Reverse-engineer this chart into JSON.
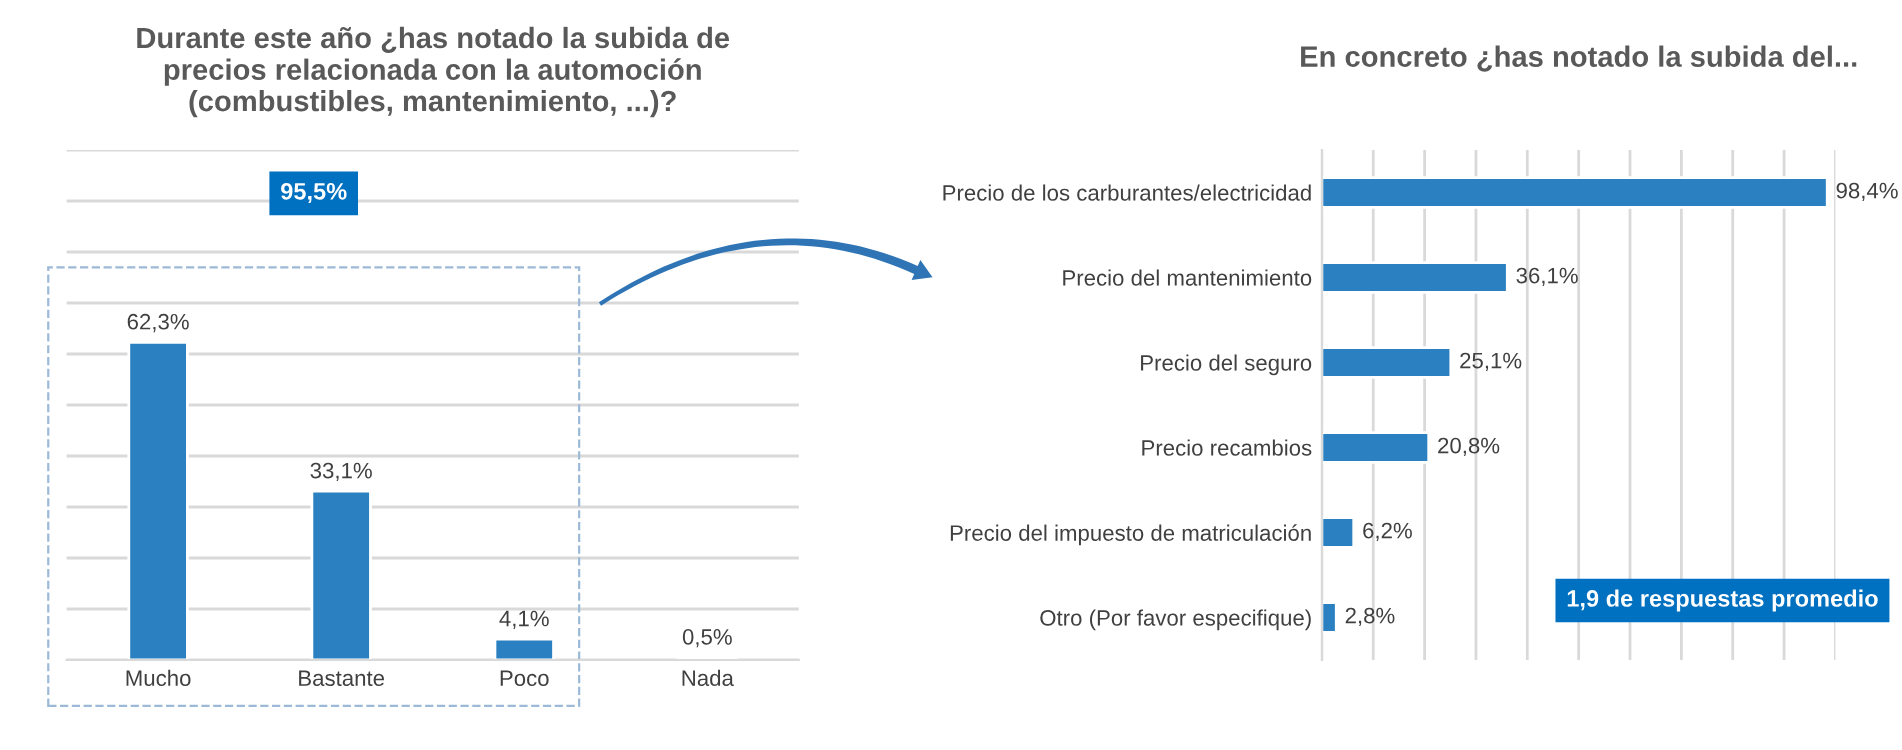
{
  "chart_data": [
    {
      "type": "bar",
      "title": "Durante este año ¿has notado la subida de\nprecios relacionada con la automoción\n(combustibles, mantenimiento, ...)?",
      "categories": [
        "Mucho",
        "Bastante",
        "Poco",
        "Nada"
      ],
      "values": [
        62.3,
        33.1,
        4.1,
        0.5
      ],
      "color": "#2a80c0",
      "value_labels": [
        "62,3%",
        "33,1%",
        "4,1%",
        "0,5%"
      ],
      "ylim": [
        0,
        100
      ],
      "yticks": [
        {
          "value": 0,
          "label": null
        },
        {
          "value": 10,
          "label": null
        },
        {
          "value": 20,
          "label": null
        },
        {
          "value": 30,
          "label": null
        },
        {
          "value": 40,
          "label": null
        },
        {
          "value": 50,
          "label": null
        },
        {
          "value": 60,
          "label": null
        },
        {
          "value": 70,
          "label": null
        },
        {
          "value": 80,
          "label": null
        },
        {
          "value": 90,
          "label": null
        },
        {
          "value": 100,
          "label": null
        }
      ],
      "grid": "y",
      "tick_labels": "x",
      "annotations": [
        "95,5%"
      ]
    },
    {
      "type": "bar",
      "orientation": "horizontal",
      "title": "En concreto ¿has notado la subida del...",
      "categories": [
        "Precio de los carburantes/electricidad",
        "Precio del mantenimiento",
        "Precio del seguro",
        "Precio recambios",
        "Precio del impuesto de matriculación",
        "Otro (Por favor especifique)"
      ],
      "values": [
        98.4,
        36.1,
        25.1,
        20.8,
        6.2,
        2.8
      ],
      "color": "#2a80c0",
      "value_labels": [
        "98,4%",
        "36,1%",
        "25,1%",
        "20,8%",
        "6,2%",
        "2,8%"
      ],
      "xlim": [
        0,
        100
      ],
      "xticks": [
        {
          "value": 0,
          "label": null
        },
        {
          "value": 10,
          "label": null
        },
        {
          "value": 20,
          "label": null
        },
        {
          "value": 30,
          "label": null
        },
        {
          "value": 40,
          "label": null
        },
        {
          "value": 50,
          "label": null
        },
        {
          "value": 60,
          "label": null
        },
        {
          "value": 70,
          "label": null
        },
        {
          "value": 80,
          "label": null
        },
        {
          "value": 90,
          "label": null
        },
        {
          "value": 100,
          "label": null
        }
      ],
      "grid": "x",
      "tick_labels": "y",
      "annotations": [
        "1,9 de respuestas promedio"
      ]
    }
  ]
}
